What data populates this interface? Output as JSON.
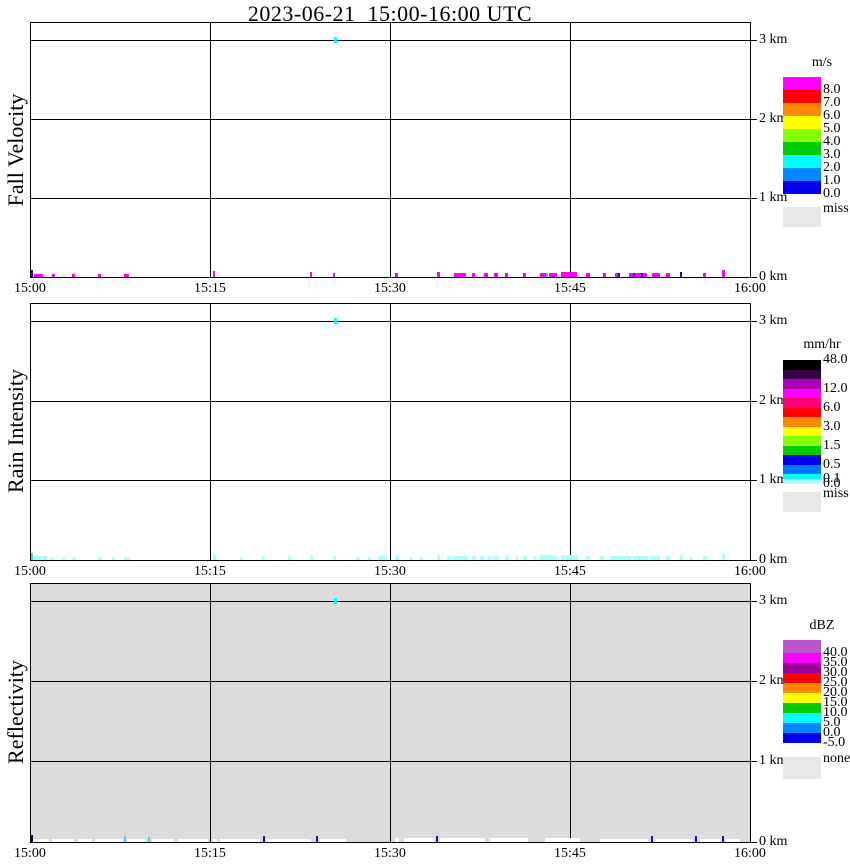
{
  "title": "2023-06-21  15:00-16:00 UTC",
  "x_axis": {
    "tick_labels": [
      "15:00",
      "15:15",
      "15:30",
      "15:45",
      "16:00"
    ],
    "positions": [
      30,
      210,
      390,
      570,
      750
    ]
  },
  "height_axis": {
    "tick_labels": [
      "3 km",
      "2 km",
      "1 km",
      "0 km"
    ]
  },
  "panels": [
    {
      "name": "fall-velocity",
      "ylabel": "Fall Velocity",
      "background": "#ffffff",
      "default_mark_color": "#ff00ff",
      "legend": {
        "title": "m/s",
        "top_label": null,
        "entries": [
          {
            "color": "#ff00ff",
            "h": 13,
            "label": "8.0"
          },
          {
            "color": "#ff0000",
            "h": 13,
            "label": "7.0"
          },
          {
            "color": "#ff8800",
            "h": 13,
            "label": "6.0"
          },
          {
            "color": "#ffff00",
            "h": 13,
            "label": "5.0"
          },
          {
            "color": "#88ff00",
            "h": 13,
            "label": "4.0"
          },
          {
            "color": "#00cc00",
            "h": 13,
            "label": "3.0"
          },
          {
            "color": "#00ffff",
            "h": 13,
            "label": "2.0"
          },
          {
            "color": "#0088ff",
            "h": 13,
            "label": "1.0"
          },
          {
            "color": "#0000ee",
            "h": 13,
            "label": "0.0"
          }
        ],
        "footer": {
          "label": "miss",
          "color": "#e8e8e8"
        }
      },
      "top_echo": {
        "x": 334,
        "color": "#00ffff"
      },
      "marks": [
        [
          31,
          2,
          7,
          "#1111cc"
        ],
        [
          34,
          9,
          3
        ],
        [
          52,
          3,
          3
        ],
        [
          72,
          3,
          3
        ],
        [
          98,
          3,
          3
        ],
        [
          124,
          5,
          3
        ],
        [
          213,
          2,
          6
        ],
        [
          310,
          2,
          5
        ],
        [
          333,
          2,
          4
        ],
        [
          395,
          3,
          4
        ],
        [
          437,
          3,
          5
        ],
        [
          454,
          12,
          4
        ],
        [
          472,
          3,
          4
        ],
        [
          484,
          4,
          4
        ],
        [
          494,
          4,
          4
        ],
        [
          505,
          3,
          4
        ],
        [
          523,
          3,
          4
        ],
        [
          540,
          6,
          4
        ],
        [
          546,
          2,
          4,
          "#00ccff"
        ],
        [
          549,
          8,
          4
        ],
        [
          561,
          16,
          5
        ],
        [
          586,
          4,
          4
        ],
        [
          603,
          3,
          4
        ],
        [
          615,
          3,
          4
        ],
        [
          618,
          2,
          4,
          "#1111cc"
        ],
        [
          629,
          4,
          4
        ],
        [
          633,
          2,
          4,
          "#1111cc"
        ],
        [
          635,
          6,
          4
        ],
        [
          641,
          2,
          4,
          "#1111cc"
        ],
        [
          643,
          4,
          4
        ],
        [
          652,
          8,
          4
        ],
        [
          666,
          4,
          4
        ],
        [
          680,
          2,
          5,
          "#1111cc"
        ],
        [
          703,
          3,
          4
        ],
        [
          722,
          3,
          7
        ]
      ]
    },
    {
      "name": "rain-intensity",
      "ylabel": "Rain Intensity",
      "background": "#ffffff",
      "default_mark_color": "#aaffff",
      "legend": {
        "title": "mm/hr",
        "top_label": "48.0",
        "entries": [
          {
            "color": "#000000",
            "h": 10
          },
          {
            "color": "#3a0045",
            "h": 9
          },
          {
            "color": "#aa00bb",
            "h": 10,
            "label": "12.0"
          },
          {
            "color": "#ff00ff",
            "h": 9
          },
          {
            "color": "#ff0077",
            "h": 10,
            "label": "6.0"
          },
          {
            "color": "#ff0000",
            "h": 9
          },
          {
            "color": "#ff8800",
            "h": 10,
            "label": "3.0"
          },
          {
            "color": "#ffff00",
            "h": 9
          },
          {
            "color": "#88ff00",
            "h": 10,
            "label": "1.5"
          },
          {
            "color": "#00cc00",
            "h": 9
          },
          {
            "color": "#0000ee",
            "h": 10,
            "label": "0.5"
          },
          {
            "color": "#0077ff",
            "h": 9
          },
          {
            "color": "#00ffff",
            "h": 5,
            "label": "0.1"
          },
          {
            "color": "#aaffff",
            "h": 5,
            "label": "0.0"
          }
        ],
        "footer": {
          "label": "miss",
          "color": "#e8e8e8"
        }
      },
      "top_echo": {
        "x": 334,
        "color": "#00ffff"
      },
      "marks": [
        [
          31,
          2,
          7,
          "#33ddff"
        ],
        [
          33,
          14,
          4
        ],
        [
          50,
          4,
          3
        ],
        [
          62,
          3,
          3
        ],
        [
          72,
          4,
          3
        ],
        [
          98,
          4,
          3
        ],
        [
          112,
          3,
          3
        ],
        [
          124,
          6,
          3
        ],
        [
          213,
          3,
          6
        ],
        [
          240,
          3,
          3
        ],
        [
          262,
          3,
          4
        ],
        [
          288,
          3,
          4
        ],
        [
          310,
          3,
          5
        ],
        [
          333,
          3,
          4
        ],
        [
          356,
          4,
          3
        ],
        [
          368,
          3,
          3
        ],
        [
          378,
          9,
          4
        ],
        [
          395,
          4,
          4
        ],
        [
          410,
          3,
          3
        ],
        [
          420,
          3,
          3
        ],
        [
          437,
          3,
          5
        ],
        [
          447,
          4,
          4
        ],
        [
          454,
          14,
          4
        ],
        [
          472,
          4,
          4
        ],
        [
          480,
          4,
          4
        ],
        [
          488,
          4,
          4
        ],
        [
          494,
          5,
          4
        ],
        [
          505,
          4,
          4
        ],
        [
          515,
          3,
          4
        ],
        [
          523,
          4,
          4
        ],
        [
          533,
          3,
          4
        ],
        [
          540,
          18,
          5
        ],
        [
          561,
          17,
          5
        ],
        [
          586,
          4,
          4
        ],
        [
          600,
          4,
          4
        ],
        [
          610,
          21,
          4
        ],
        [
          633,
          15,
          4
        ],
        [
          650,
          10,
          4
        ],
        [
          665,
          5,
          4
        ],
        [
          680,
          3,
          5
        ],
        [
          690,
          3,
          3
        ],
        [
          703,
          4,
          4
        ],
        [
          722,
          3,
          7
        ]
      ]
    },
    {
      "name": "reflectivity",
      "ylabel": "Reflectivity",
      "background": "#dcdcdc",
      "default_mark_color": "#ffffff",
      "legend": {
        "title": "dBZ",
        "top_label": null,
        "entries": [
          {
            "color": "#bb55cc",
            "h": 13,
            "label": "40.0"
          },
          {
            "color": "#ff00ff",
            "h": 10,
            "label": "35.0"
          },
          {
            "color": "#990099",
            "h": 10,
            "label": "30.0"
          },
          {
            "color": "#ff0000",
            "h": 10,
            "label": "25.0"
          },
          {
            "color": "#ff8800",
            "h": 10,
            "label": "20.0"
          },
          {
            "color": "#ffff00",
            "h": 10,
            "label": "15.0"
          },
          {
            "color": "#00cc00",
            "h": 10,
            "label": "10.0"
          },
          {
            "color": "#00ffff",
            "h": 10,
            "label": "5.0"
          },
          {
            "color": "#0088ff",
            "h": 10,
            "label": "0.0"
          },
          {
            "color": "#0000ee",
            "h": 10,
            "label": "-5.0"
          }
        ],
        "footer": {
          "label": "none",
          "color": "#e8e8e8"
        }
      },
      "top_echo": {
        "x": 334,
        "color": "#00ffff"
      },
      "marks": [
        [
          31,
          2,
          7,
          "#000099"
        ],
        [
          33,
          16,
          3
        ],
        [
          52,
          22,
          3
        ],
        [
          78,
          14,
          3
        ],
        [
          95,
          28,
          3
        ],
        [
          124,
          2,
          6,
          "#33ddff"
        ],
        [
          127,
          18,
          3
        ],
        [
          148,
          2,
          5,
          "#33ddff"
        ],
        [
          152,
          22,
          3
        ],
        [
          178,
          30,
          3
        ],
        [
          213,
          4,
          3
        ],
        [
          220,
          40,
          3
        ],
        [
          263,
          2,
          6,
          "#1111cc"
        ],
        [
          266,
          45,
          3
        ],
        [
          316,
          2,
          6,
          "#1111cc"
        ],
        [
          320,
          26,
          3
        ],
        [
          395,
          4,
          4
        ],
        [
          404,
          30,
          4
        ],
        [
          436,
          2,
          6,
          "#1111cc"
        ],
        [
          440,
          45,
          4
        ],
        [
          490,
          38,
          4
        ],
        [
          545,
          35,
          4
        ],
        [
          600,
          48,
          3
        ],
        [
          651,
          2,
          6,
          "#1111cc"
        ],
        [
          655,
          38,
          3
        ],
        [
          695,
          2,
          6,
          "#1111cc"
        ],
        [
          700,
          20,
          3
        ],
        [
          722,
          2,
          6,
          "#1111cc"
        ],
        [
          726,
          14,
          3
        ]
      ]
    }
  ],
  "chart_data": [
    {
      "type": "heatmap",
      "title": "Fall Velocity",
      "unit": "m/s",
      "x_range": [
        "15:00",
        "16:00"
      ],
      "x_ticks": [
        "15:00",
        "15:15",
        "15:30",
        "15:45",
        "16:00"
      ],
      "y_ticks_km": [
        0,
        1,
        2,
        3
      ],
      "grid": true,
      "legend_position": "right",
      "color_scale": {
        "values": [
          0.0,
          1.0,
          2.0,
          3.0,
          4.0,
          5.0,
          6.0,
          7.0,
          8.0
        ],
        "colors_low_to_high": [
          "#0000ee",
          "#0088ff",
          "#00ffff",
          "#00cc00",
          "#88ff00",
          "#ffff00",
          "#ff8800",
          "#ff0000",
          "#ff00ff"
        ],
        "missing_label": "miss"
      },
      "summary": "Panel almost empty. Intermittent shallow echoes confined below ~0.1 km with fall velocity >=8 m/s (magenta), scattered 15:00-15:08, denser 15:33-15:46 and 15:48-15:58; a few 0-1 m/s (blue) pixels at 15:00 and 15:49-15:54. One isolated cyan echo (~2 m/s) at 3.0 km near 15:25."
    },
    {
      "type": "heatmap",
      "title": "Rain Intensity",
      "unit": "mm/hr",
      "x_range": [
        "15:00",
        "16:00"
      ],
      "x_ticks": [
        "15:00",
        "15:15",
        "15:30",
        "15:45",
        "16:00"
      ],
      "y_ticks_km": [
        0,
        1,
        2,
        3
      ],
      "grid": true,
      "legend_position": "right",
      "color_scale": {
        "values": [
          0.0,
          0.1,
          0.5,
          1.5,
          3.0,
          6.0,
          12.0,
          48.0
        ],
        "colors_low_to_high": [
          "#aaffff",
          "#00ffff",
          "#0077ff",
          "#0000ee",
          "#00cc00",
          "#88ff00",
          "#ffff00",
          "#ff8800",
          "#ff0000",
          "#ff0077",
          "#ff00ff",
          "#aa00bb",
          "#3a0045",
          "#000000"
        ],
        "missing_label": "miss"
      },
      "summary": "Same shallow echoes below ~0.1 km but at 0.0-0.1 mm/hr (pale cyan), scattered through the hour and denser 15:33-15:46 and 15:48-15:58. One isolated cyan echo (~0.1 mm/hr) at 3.0 km near 15:25."
    },
    {
      "type": "heatmap",
      "title": "Reflectivity",
      "unit": "dBZ",
      "x_range": [
        "15:00",
        "16:00"
      ],
      "x_ticks": [
        "15:00",
        "15:15",
        "15:30",
        "15:45",
        "16:00"
      ],
      "y_ticks_km": [
        0,
        1,
        2,
        3
      ],
      "grid": true,
      "legend_position": "right",
      "color_scale": {
        "values": [
          -5.0,
          0.0,
          5.0,
          10.0,
          15.0,
          20.0,
          25.0,
          30.0,
          35.0,
          40.0
        ],
        "colors_low_to_high": [
          "#0000ee",
          "#0088ff",
          "#00ffff",
          "#00cc00",
          "#ffff00",
          "#ff8800",
          "#ff0000",
          "#990099",
          "#ff00ff",
          "#bb55cc"
        ],
        "missing_label": "none"
      },
      "summary": "Gray 'none' background over the whole hour aloft. Near-surface (<0.1 km) patchy white below-scale returns, with isolated -5 to 0 dBZ (blue) pixels near 15:00, 15:19, 15:24, 15:34, 15:52, 15:55, 15:58 and ~5 dBZ (cyan) pixels near 15:08 and 15:10. One cyan (~5 dBZ) echo at 3.0 km near 15:25."
    }
  ]
}
